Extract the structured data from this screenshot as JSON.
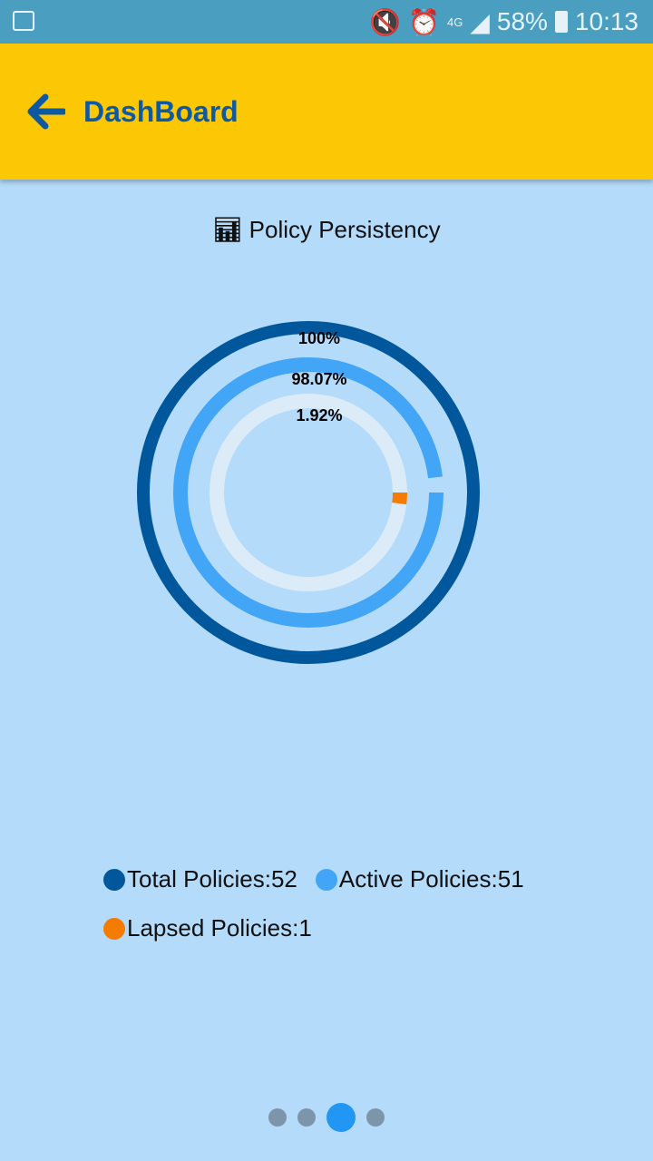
{
  "status_bar": {
    "battery": "58%",
    "time": "10:13",
    "network": "4G"
  },
  "header": {
    "title": "DashBoard"
  },
  "chart_data": {
    "type": "radial-bar",
    "title": "Policy Persistency",
    "series": [
      {
        "name": "Total Policies",
        "value": 100,
        "label": "100%",
        "color": "#01579b"
      },
      {
        "name": "Active Policies",
        "value": 98.07,
        "label": "98.07%",
        "color": "#42a5f5"
      },
      {
        "name": "Lapsed Policies",
        "value": 1.92,
        "label": "1.92%",
        "color": "#f57c00"
      }
    ],
    "track_color": "#dcebf8",
    "legend": [
      {
        "text": "Total Policies:52",
        "color": "#01579b"
      },
      {
        "text": "Active Policies:51",
        "color": "#42a5f5"
      },
      {
        "text": "Lapsed Policies:1",
        "color": "#f57c00"
      }
    ],
    "legend_placement": "bottom"
  },
  "pager": {
    "pages": 4,
    "active": 3
  }
}
